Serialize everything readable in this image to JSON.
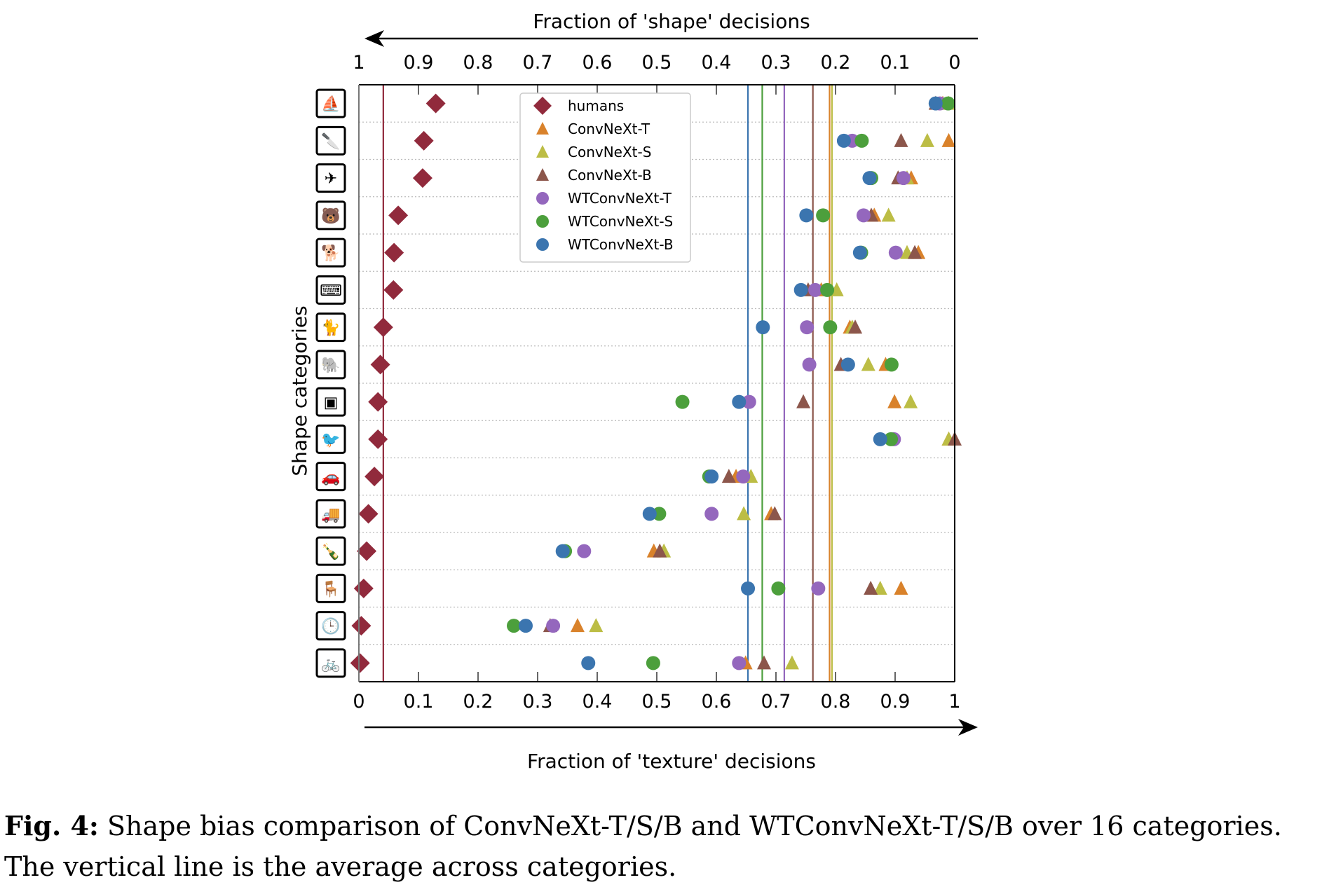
{
  "chart_data": {
    "type": "scatter",
    "title": "",
    "top_axis_label": "Fraction of 'shape' decisions",
    "xlabel": "Fraction of 'texture' decisions",
    "ylabel": "Shape categories",
    "xlim": [
      0,
      1
    ],
    "bottom_ticks": [
      "0",
      "0.1",
      "0.2",
      "0.3",
      "0.4",
      "0.5",
      "0.6",
      "0.7",
      "0.8",
      "0.9",
      "1"
    ],
    "top_ticks": [
      "1",
      "0.9",
      "0.8",
      "0.7",
      "0.6",
      "0.5",
      "0.4",
      "0.3",
      "0.2",
      "0.1",
      "0"
    ],
    "grid": "horizontal dotted",
    "legend_position": "top-center",
    "categories": [
      "boat",
      "knife",
      "airplane",
      "bear",
      "dog",
      "keyboard",
      "cat",
      "elephant",
      "oven",
      "bird",
      "car",
      "truck",
      "bottle",
      "chair",
      "clock",
      "bicycle"
    ],
    "series": [
      {
        "name": "humans",
        "marker": "diamond",
        "color": "#912a3c",
        "mean": 0.041,
        "values": [
          0.129,
          0.109,
          0.107,
          0.066,
          0.059,
          0.058,
          0.041,
          0.036,
          0.032,
          0.032,
          0.026,
          0.016,
          0.013,
          0.008,
          0.004,
          0.002
        ]
      },
      {
        "name": "ConvNeXt-T",
        "marker": "triangle",
        "color": "#d9822b",
        "mean": 0.79,
        "values": [
          0.98,
          0.99,
          0.927,
          0.865,
          0.939,
          0.776,
          0.824,
          0.884,
          0.899,
          0.99,
          0.633,
          0.692,
          0.495,
          0.91,
          0.367,
          0.649
        ]
      },
      {
        "name": "ConvNeXt-S",
        "marker": "triangle",
        "color": "#bcbd45",
        "mean": 0.794,
        "values": [
          0.99,
          0.954,
          0.92,
          0.889,
          0.92,
          0.802,
          0.828,
          0.855,
          0.926,
          0.99,
          0.658,
          0.646,
          0.512,
          0.875,
          0.398,
          0.727
        ]
      },
      {
        "name": "ConvNeXt-B",
        "marker": "triangle",
        "color": "#8c564b",
        "mean": 0.762,
        "values": [
          0.968,
          0.91,
          0.905,
          0.86,
          0.933,
          0.754,
          0.833,
          0.809,
          0.746,
          1.0,
          0.621,
          0.698,
          0.505,
          0.859,
          0.321,
          0.68
        ]
      },
      {
        "name": "WTConvNeXt-T",
        "marker": "circle",
        "color": "#9467bd",
        "mean": 0.714,
        "values": [
          0.975,
          0.828,
          0.914,
          0.847,
          0.901,
          0.766,
          0.752,
          0.756,
          0.655,
          0.898,
          0.645,
          0.592,
          0.378,
          0.771,
          0.326,
          0.638
        ]
      },
      {
        "name": "WTConvNeXt-S",
        "marker": "circle",
        "color": "#4c9f3c",
        "mean": 0.677,
        "values": [
          0.989,
          0.844,
          0.86,
          0.779,
          0.843,
          0.786,
          0.791,
          0.894,
          0.543,
          0.893,
          0.588,
          0.504,
          0.346,
          0.704,
          0.26,
          0.494
        ]
      },
      {
        "name": "WTConvNeXt-B",
        "marker": "circle",
        "color": "#3b75af",
        "mean": 0.653,
        "values": [
          0.968,
          0.814,
          0.857,
          0.751,
          0.841,
          0.742,
          0.678,
          0.821,
          0.638,
          0.875,
          0.592,
          0.488,
          0.342,
          0.653,
          0.28,
          0.385
        ]
      }
    ]
  },
  "caption": {
    "label": "Fig. 4:",
    "text": " Shape bias comparison of ConvNeXt-T/S/B and WTConvNeXt-T/S/B over 16 categories. The vertical line is the average across categories."
  }
}
